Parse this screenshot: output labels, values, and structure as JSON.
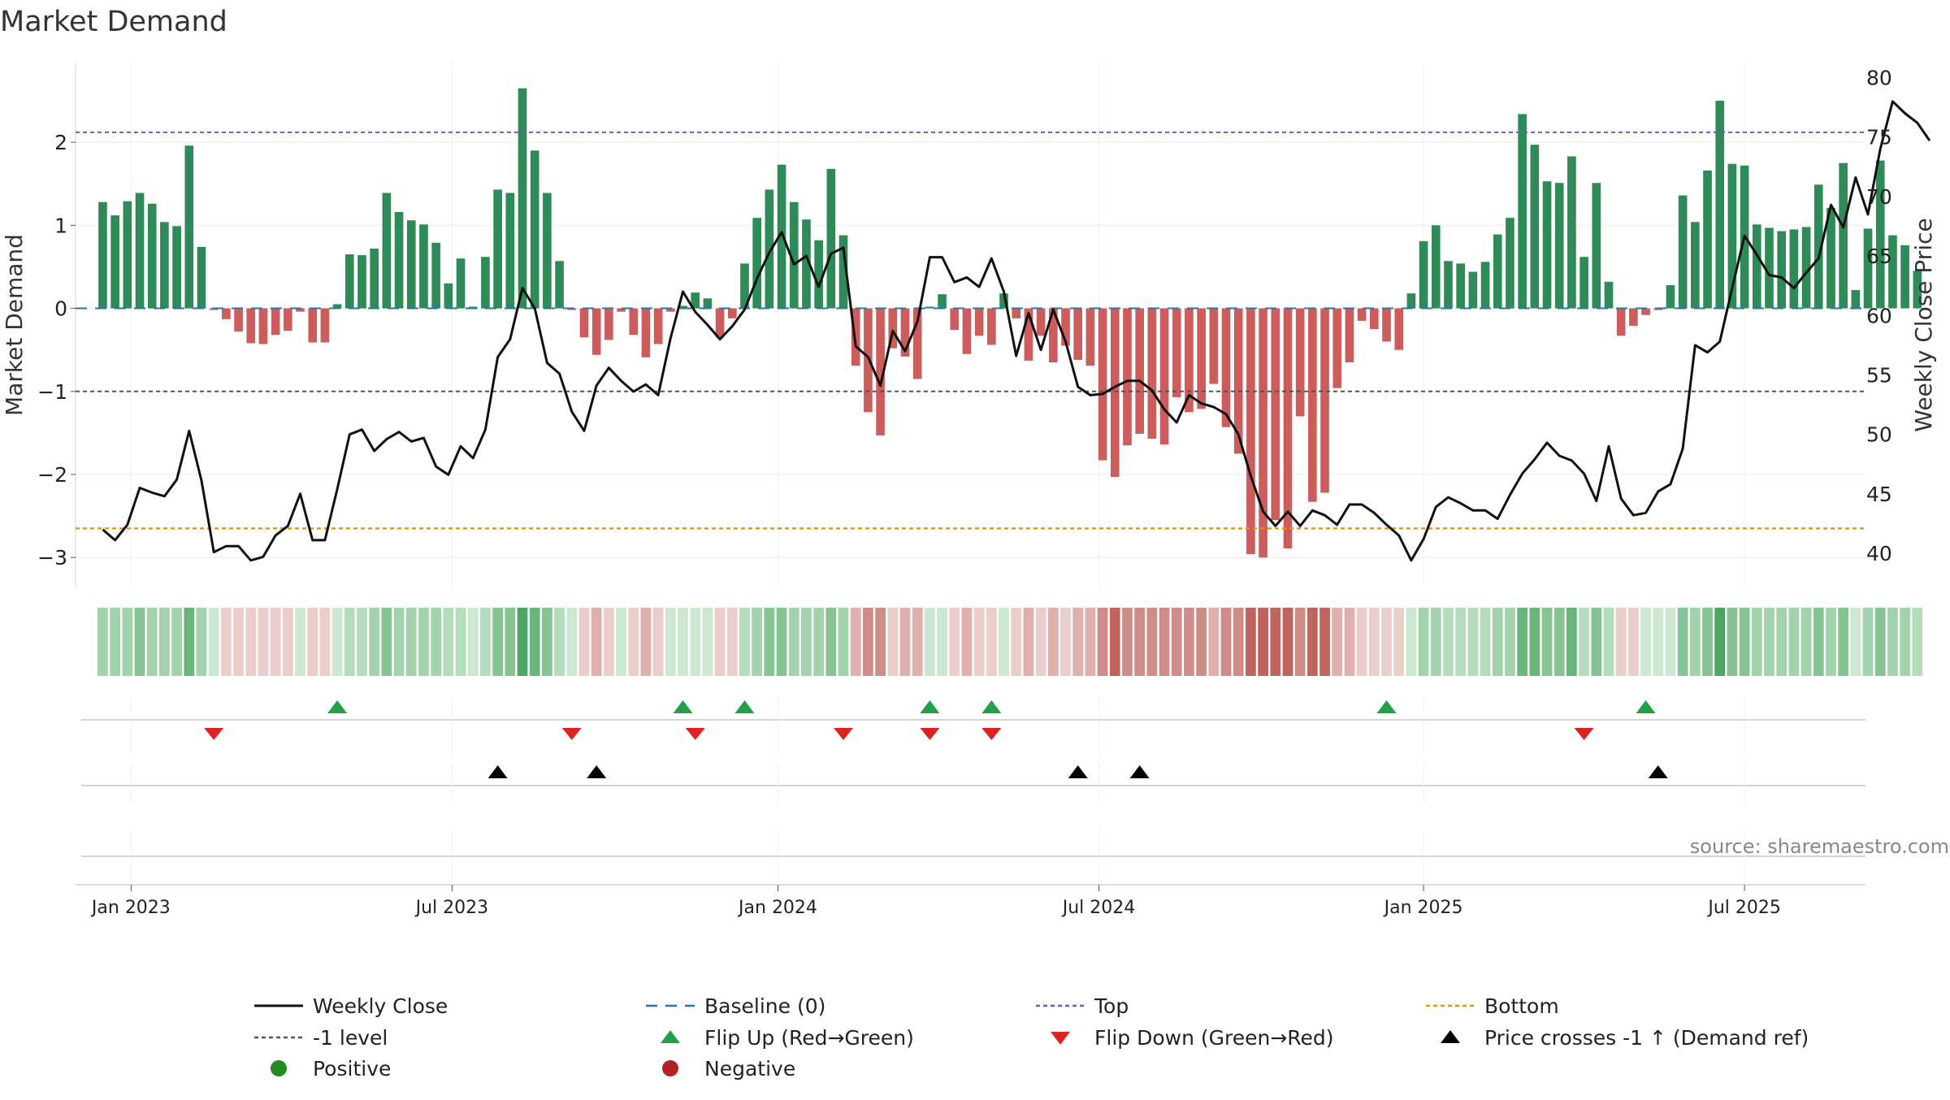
{
  "chart_data": {
    "type": "bar",
    "title": "Market Demand",
    "ylabel": "Market Demand",
    "y2label": "Weekly Close Price",
    "source": "source: sharemaestro.com",
    "ylim": [
      -3.35,
      2.95
    ],
    "y_ticks": [
      {
        "v": 2,
        "label": "2"
      },
      {
        "v": 1,
        "label": "1"
      },
      {
        "v": 0,
        "label": "0"
      },
      {
        "v": -1,
        "label": "−1"
      },
      {
        "v": -2,
        "label": "−2"
      },
      {
        "v": -3,
        "label": "−3"
      }
    ],
    "y2lim": [
      37.2,
      81.2
    ],
    "y2_ticks": [
      {
        "v": 80,
        "label": "80"
      },
      {
        "v": 75,
        "label": "75"
      },
      {
        "v": 70,
        "label": "70"
      },
      {
        "v": 65,
        "label": "65"
      },
      {
        "v": 60,
        "label": "60"
      },
      {
        "v": 55,
        "label": "55"
      },
      {
        "v": 50,
        "label": "50"
      },
      {
        "v": 45,
        "label": "45"
      },
      {
        "v": 40,
        "label": "40"
      }
    ],
    "x_range_weeks": [
      -2.2,
      142.8
    ],
    "x_ticks": [
      {
        "week": 2.3,
        "label": "Jan 2023"
      },
      {
        "week": 28.3,
        "label": "Jul 2023"
      },
      {
        "week": 54.7,
        "label": "Jan 2024"
      },
      {
        "week": 80.7,
        "label": "Jul 2024"
      },
      {
        "week": 107.0,
        "label": "Jan 2025"
      },
      {
        "week": 133.0,
        "label": "Jul 2025"
      }
    ],
    "levels": {
      "top": 2.12,
      "minus_one": -1.0,
      "bottom": -2.65,
      "baseline": 0
    },
    "demand": [
      1.28,
      1.12,
      1.29,
      1.39,
      1.26,
      1.04,
      0.99,
      1.96,
      0.74,
      -0.02,
      -0.13,
      -0.28,
      -0.42,
      -0.43,
      -0.32,
      -0.27,
      -0.04,
      -0.41,
      -0.41,
      0.05,
      0.65,
      0.64,
      0.72,
      1.39,
      1.16,
      1.06,
      1.01,
      0.79,
      0.3,
      0.6,
      0.02,
      0.62,
      1.43,
      1.39,
      2.65,
      1.9,
      1.39,
      0.57,
      -0.02,
      -0.35,
      -0.56,
      -0.38,
      -0.04,
      -0.32,
      -0.59,
      -0.43,
      -0.04,
      0.03,
      0.19,
      0.12,
      -0.35,
      -0.12,
      0.54,
      1.09,
      1.43,
      1.73,
      1.28,
      1.07,
      0.82,
      1.68,
      0.88,
      -0.69,
      -1.25,
      -1.53,
      -0.48,
      -0.58,
      -0.85,
      0.02,
      0.17,
      -0.26,
      -0.55,
      -0.33,
      -0.44,
      0.18,
      -0.12,
      -0.63,
      -0.33,
      -0.65,
      -0.45,
      -0.62,
      -0.69,
      -1.83,
      -2.03,
      -1.65,
      -1.51,
      -1.57,
      -1.64,
      -1.07,
      -1.25,
      -1.21,
      -0.91,
      -1.43,
      -1.75,
      -2.96,
      -3.0,
      -2.55,
      -2.89,
      -1.3,
      -2.33,
      -2.22,
      -0.96,
      -0.65,
      -0.15,
      -0.25,
      -0.4,
      -0.5,
      0.18,
      0.81,
      1.0,
      0.57,
      0.54,
      0.44,
      0.56,
      0.89,
      1.09,
      2.34,
      1.97,
      1.53,
      1.51,
      1.83,
      0.62,
      1.51,
      0.32,
      -0.33,
      -0.21,
      -0.08,
      -0.02,
      0.28,
      1.36,
      1.04,
      1.66,
      2.5,
      1.74,
      1.72,
      1.01,
      0.97,
      0.93,
      0.95,
      0.98,
      1.49,
      1.21,
      1.75,
      0.22,
      0.96,
      1.78,
      0.88,
      0.76,
      0.45
    ],
    "weekly_close": [
      42.0,
      41.1,
      42.4,
      45.5,
      45.1,
      44.8,
      46.2,
      50.3,
      46.1,
      40.1,
      40.6,
      40.6,
      39.4,
      39.7,
      41.5,
      42.3,
      45.0,
      41.1,
      41.1,
      45.4,
      50.0,
      50.4,
      48.6,
      49.6,
      50.2,
      49.4,
      49.7,
      47.3,
      46.6,
      49.0,
      48.0,
      50.4,
      56.5,
      58.0,
      62.3,
      60.6,
      56.0,
      55.1,
      51.9,
      50.3,
      54.1,
      55.6,
      54.5,
      53.6,
      54.2,
      53.3,
      58.1,
      62.0,
      60.3,
      59.2,
      58.0,
      59.1,
      60.5,
      63.1,
      65.3,
      67.0,
      64.3,
      65.0,
      62.4,
      65.2,
      65.7,
      57.4,
      56.5,
      54.1,
      58.7,
      57.0,
      59.5,
      64.9,
      64.9,
      62.8,
      63.2,
      62.4,
      64.8,
      62.0,
      56.6,
      60.2,
      57.1,
      60.5,
      57.8,
      54.0,
      53.3,
      53.4,
      54.0,
      54.5,
      54.5,
      53.7,
      52.1,
      51.0,
      53.3,
      52.6,
      52.3,
      51.7,
      50.0,
      46.5,
      43.5,
      42.3,
      43.5,
      42.3,
      43.6,
      43.2,
      42.4,
      44.1,
      44.1,
      43.4,
      42.4,
      41.5,
      39.4,
      41.2,
      43.9,
      44.7,
      44.2,
      43.6,
      43.6,
      42.9,
      44.9,
      46.7,
      47.9,
      49.3,
      48.2,
      47.8,
      46.7,
      44.4,
      49.0,
      44.6,
      43.2,
      43.4,
      45.2,
      45.8,
      48.8,
      57.5,
      56.9,
      57.8,
      62.3,
      66.7,
      65.1,
      63.4,
      63.2,
      62.3,
      63.6,
      64.8,
      69.3,
      67.4,
      71.6,
      68.5,
      74.0,
      78.0,
      77.0,
      76.2,
      74.7
    ],
    "heat_color_ranges": [
      {
        "from": -3.2,
        "to": -2.0,
        "color": "#c1645e"
      },
      {
        "from": -2.0,
        "to": -1.0,
        "color": "#d08c88"
      },
      {
        "from": -1.0,
        "to": -0.5,
        "color": "#dfb0ad"
      },
      {
        "from": -0.5,
        "to": -0.1,
        "color": "#ebcecc"
      },
      {
        "from": -0.1,
        "to": 0.3,
        "color": "#cde8d2"
      },
      {
        "from": 0.3,
        "to": 0.7,
        "color": "#b5dcbd"
      },
      {
        "from": 0.7,
        "to": 1.3,
        "color": "#a3d3ad"
      },
      {
        "from": 1.3,
        "to": 1.8,
        "color": "#86c593"
      },
      {
        "from": 1.8,
        "to": 2.5,
        "color": "#6ab67a"
      },
      {
        "from": 2.5,
        "to": 3.5,
        "color": "#4ea562"
      }
    ],
    "flip_up_weeks": [
      19,
      47,
      52,
      67,
      72,
      104,
      125
    ],
    "flip_down_weeks": [
      9,
      38,
      48,
      60,
      67,
      72,
      120
    ],
    "price_cross_weeks": [
      32,
      40,
      79,
      84,
      126
    ],
    "colors": {
      "positive_bar": "#2e8b57",
      "negative_bar": "#cd5c5c",
      "close_line": "#111111",
      "baseline": "#1f77b4",
      "top": "#6a5acd",
      "minus_one": "#555555",
      "bottom": "#e69500",
      "flip_up": "#22a045",
      "flip_down": "#dd2222",
      "cross": "#000000",
      "positive_dot": "#228b22",
      "negative_dot": "#b22222"
    },
    "legend": [
      {
        "key": "close",
        "label": "Weekly Close"
      },
      {
        "key": "baseline",
        "label": "Baseline (0)"
      },
      {
        "key": "top",
        "label": "Top"
      },
      {
        "key": "bottom",
        "label": "Bottom"
      },
      {
        "key": "minus_one",
        "label": "-1 level"
      },
      {
        "key": "flip_up",
        "label": "Flip Up (Red→Green)"
      },
      {
        "key": "flip_down",
        "label": "Flip Down (Green→Red)"
      },
      {
        "key": "cross",
        "label": "Price crosses -1 ↑ (Demand ref)"
      },
      {
        "key": "positive",
        "label": "Positive"
      },
      {
        "key": "negative",
        "label": "Negative"
      }
    ],
    "legend_position": "bottom"
  }
}
